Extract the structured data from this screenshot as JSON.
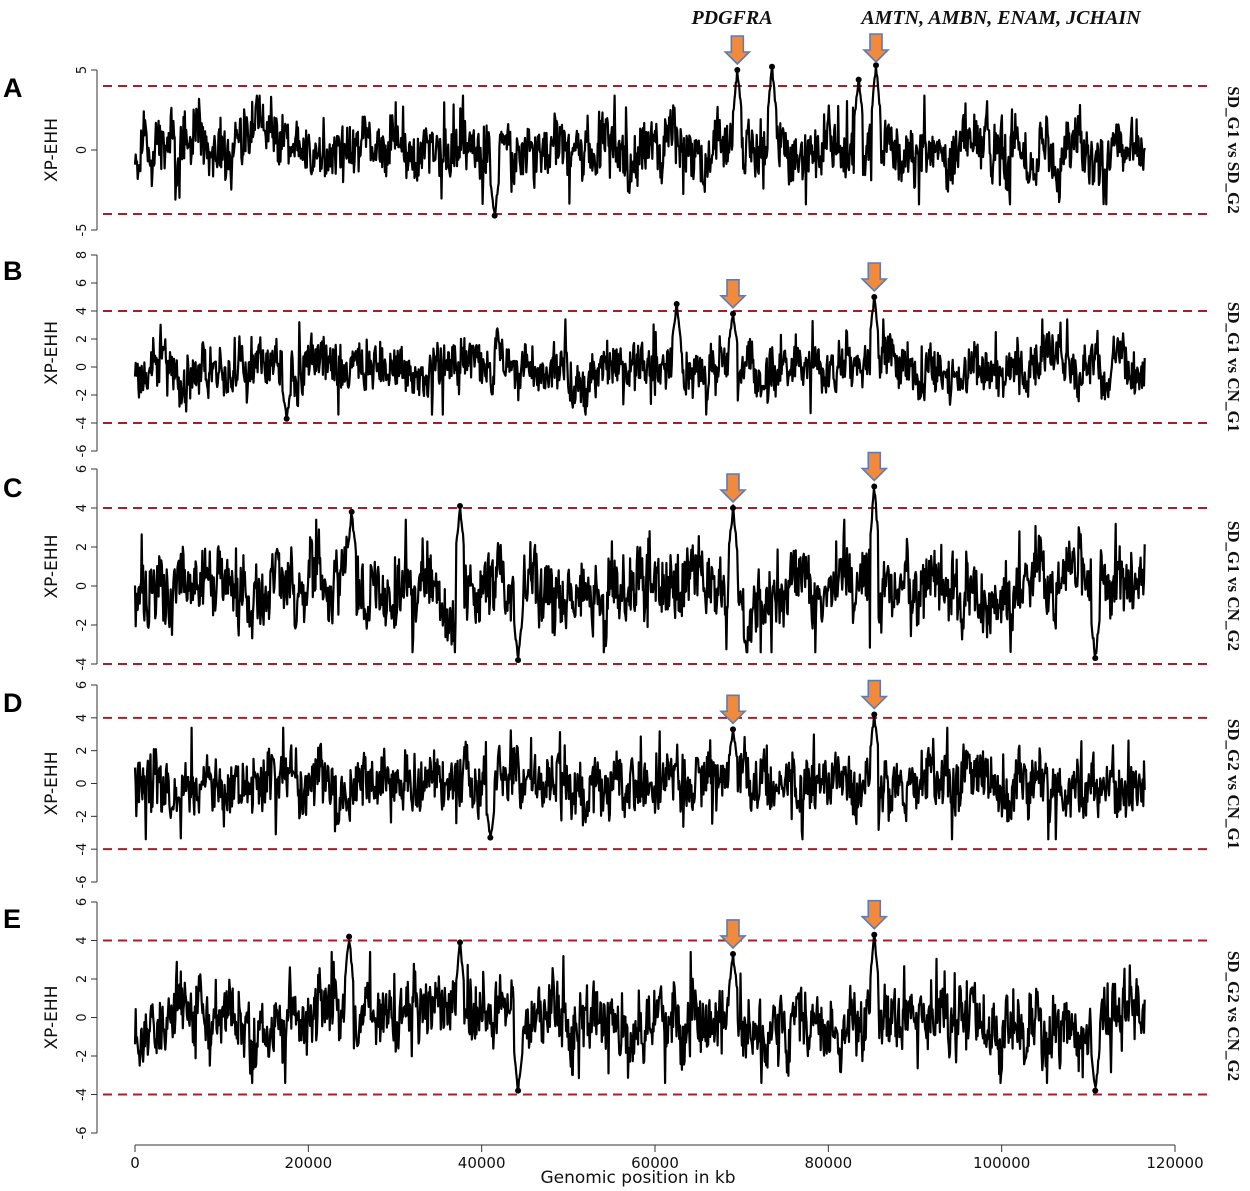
{
  "gene_labels": [
    "PDGFRA",
    "AMTN, AMBN, ENAM, JCHAIN"
  ],
  "chart_data": [
    {
      "panel": "A",
      "type": "scatter",
      "comparison": "SD_G1 vs SD_G2",
      "ylabel": "XP-EHH",
      "ylim": [
        -5,
        5
      ],
      "yticks": [
        "-5",
        "0",
        "5"
      ],
      "ytick_values": [
        -5,
        0,
        5
      ],
      "threshold": [
        4,
        -4
      ],
      "xlim": [
        0,
        116500
      ],
      "arrows_x": [
        69500,
        85500
      ],
      "summary_peaks": [
        {
          "x": 69500,
          "y": 5.0
        },
        {
          "x": 73500,
          "y": 5.2
        },
        {
          "x": 83500,
          "y": 4.4
        },
        {
          "x": 85500,
          "y": 5.3
        },
        {
          "x": 41500,
          "y": -4.1
        }
      ],
      "seed": 11
    },
    {
      "panel": "B",
      "type": "scatter",
      "comparison": "SD_G1 vs CN_G1",
      "ylabel": "XP-EHH",
      "ylim": [
        -6,
        8
      ],
      "yticks": [
        "-6",
        "-4",
        "-2",
        "0",
        "2",
        "4",
        "6",
        "8"
      ],
      "ytick_values": [
        -6,
        -4,
        -2,
        0,
        2,
        4,
        6,
        8
      ],
      "threshold": [
        4,
        -4
      ],
      "xlim": [
        0,
        116500
      ],
      "arrows_x": [
        69000,
        85300
      ],
      "summary_peaks": [
        {
          "x": 62500,
          "y": 4.5
        },
        {
          "x": 69000,
          "y": 3.8
        },
        {
          "x": 85300,
          "y": 5.0
        },
        {
          "x": 17500,
          "y": -3.7
        }
      ],
      "seed": 23
    },
    {
      "panel": "C",
      "type": "scatter",
      "comparison": "SD_G1 vs CN_G2",
      "ylabel": "XP-EHH",
      "ylim": [
        -4,
        6
      ],
      "yticks": [
        "-4",
        "-2",
        "0",
        "2",
        "4",
        "6"
      ],
      "ytick_values": [
        -4,
        -2,
        0,
        2,
        4,
        6
      ],
      "threshold": [
        4,
        -4
      ],
      "xlim": [
        0,
        116500
      ],
      "arrows_x": [
        69000,
        85300
      ],
      "summary_peaks": [
        {
          "x": 25000,
          "y": 3.8
        },
        {
          "x": 37500,
          "y": 4.1
        },
        {
          "x": 69000,
          "y": 4.0
        },
        {
          "x": 85300,
          "y": 5.1
        },
        {
          "x": 44200,
          "y": -3.8
        },
        {
          "x": 110800,
          "y": -3.7
        }
      ],
      "seed": 37
    },
    {
      "panel": "D",
      "type": "scatter",
      "comparison": "SD_G2 vs CN_G1",
      "ylabel": "XP-EHH",
      "ylim": [
        -6,
        6
      ],
      "yticks": [
        "-6",
        "-4",
        "-2",
        "0",
        "2",
        "4",
        "6"
      ],
      "ytick_values": [
        -6,
        -4,
        -2,
        0,
        2,
        4,
        6
      ],
      "threshold": [
        4,
        -4
      ],
      "xlim": [
        0,
        116500
      ],
      "arrows_x": [
        69000,
        85300
      ],
      "summary_peaks": [
        {
          "x": 69000,
          "y": 3.3
        },
        {
          "x": 85300,
          "y": 4.2
        },
        {
          "x": 41000,
          "y": -3.3
        }
      ],
      "seed": 41
    },
    {
      "panel": "E",
      "type": "scatter",
      "comparison": "SD_G2 vs CN_G2",
      "ylabel": "XP-EHH",
      "ylim": [
        -6,
        6
      ],
      "yticks": [
        "-6",
        "-4",
        "-2",
        "0",
        "2",
        "4",
        "6"
      ],
      "ytick_values": [
        -6,
        -4,
        -2,
        0,
        2,
        4,
        6
      ],
      "threshold": [
        4,
        -4
      ],
      "xlim": [
        0,
        116500
      ],
      "arrows_x": [
        69000,
        85300
      ],
      "summary_peaks": [
        {
          "x": 24700,
          "y": 4.2
        },
        {
          "x": 37500,
          "y": 3.9
        },
        {
          "x": 69000,
          "y": 3.3
        },
        {
          "x": 85300,
          "y": 4.3
        },
        {
          "x": 44200,
          "y": -3.8
        },
        {
          "x": 110800,
          "y": -3.8
        }
      ],
      "seed": 53
    }
  ],
  "x_axis": {
    "label": "Genomic position in kb",
    "ticks": [
      "0",
      "20000",
      "40000",
      "60000",
      "80000",
      "100000",
      "120000"
    ],
    "tick_values": [
      0,
      20000,
      40000,
      60000,
      80000,
      100000,
      120000
    ]
  },
  "colors": {
    "points": "#000000",
    "threshold_line": "#a3202a",
    "arrow_fill": "#f28a3c",
    "arrow_outline": "#5d7bb5"
  }
}
